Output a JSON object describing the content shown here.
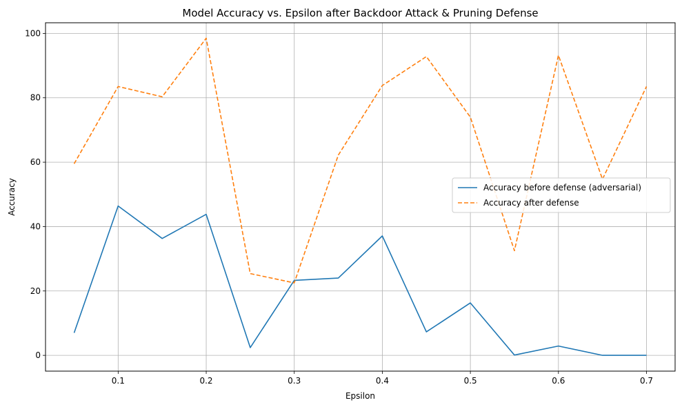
{
  "chart_data": {
    "type": "line",
    "title": "Model Accuracy vs. Epsilon after Backdoor Attack & Pruning Defense",
    "xlabel": "Epsilon",
    "ylabel": "Accuracy",
    "x": [
      0.05,
      0.1,
      0.15,
      0.2,
      0.25,
      0.3,
      0.35,
      0.4,
      0.45,
      0.5,
      0.55,
      0.6,
      0.65,
      0.7
    ],
    "xlim": [
      0.0175,
      0.7325
    ],
    "ylim": [
      -4.9,
      103.3
    ],
    "xticks": [
      0.1,
      0.2,
      0.3,
      0.4,
      0.5,
      0.6,
      0.7
    ],
    "xtick_labels": [
      "0.1",
      "0.2",
      "0.3",
      "0.4",
      "0.5",
      "0.6",
      "0.7"
    ],
    "yticks": [
      0,
      20,
      40,
      60,
      80,
      100
    ],
    "ytick_labels": [
      "0",
      "20",
      "40",
      "60",
      "80",
      "100"
    ],
    "grid": true,
    "legend_position": "center-right",
    "series": [
      {
        "name": "Accuracy before defense (adversarial)",
        "color": "#1f77b4",
        "style": "solid",
        "values": [
          7.0,
          46.4,
          36.3,
          43.8,
          2.4,
          23.3,
          24.0,
          37.1,
          7.3,
          16.3,
          0.1,
          2.9,
          0.0,
          0.0
        ]
      },
      {
        "name": "Accuracy after defense",
        "color": "#ff7f0e",
        "style": "dashed",
        "values": [
          59.5,
          83.5,
          80.3,
          98.5,
          25.4,
          22.5,
          62.2,
          83.8,
          92.8,
          74.0,
          32.5,
          93.2,
          54.7,
          83.5
        ]
      }
    ]
  }
}
